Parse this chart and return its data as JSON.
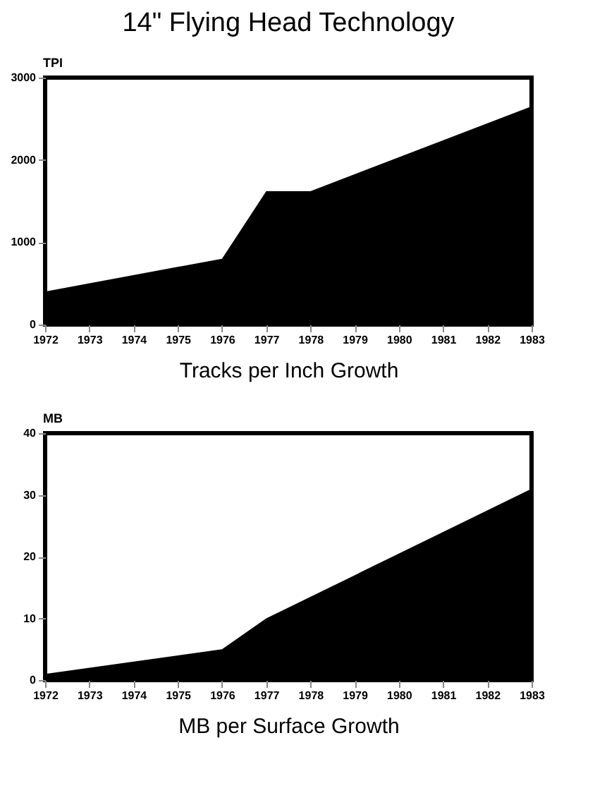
{
  "chart_data": [
    {
      "type": "area",
      "title": "14\" Flying Head Technology",
      "xlabel": "Tracks per Inch Growth",
      "ylabel": "TPI",
      "x": [
        1972,
        1976,
        1977,
        1978,
        1983
      ],
      "series": [
        {
          "color": "#000000",
          "values": [
            400,
            800,
            1620,
            1620,
            2650
          ]
        }
      ],
      "xlim": [
        1972,
        1983
      ],
      "xticks": [
        1972,
        1973,
        1974,
        1975,
        1976,
        1977,
        1978,
        1979,
        1980,
        1981,
        1982,
        1983
      ],
      "ylim": [
        0,
        3000
      ],
      "yticks": [
        0,
        1000,
        2000,
        3000
      ],
      "grid": false
    },
    {
      "type": "area",
      "xlabel": "MB per Surface Growth",
      "ylabel": "MB",
      "x": [
        1972,
        1976,
        1977,
        1983
      ],
      "series": [
        {
          "color": "#000000",
          "values": [
            1,
            5,
            10,
            31
          ]
        }
      ],
      "xlim": [
        1972,
        1983
      ],
      "xticks": [
        1972,
        1973,
        1974,
        1975,
        1976,
        1977,
        1978,
        1979,
        1980,
        1981,
        1982,
        1983
      ],
      "ylim": [
        0,
        40
      ],
      "yticks": [
        0,
        10,
        20,
        30,
        40
      ],
      "grid": false
    }
  ]
}
